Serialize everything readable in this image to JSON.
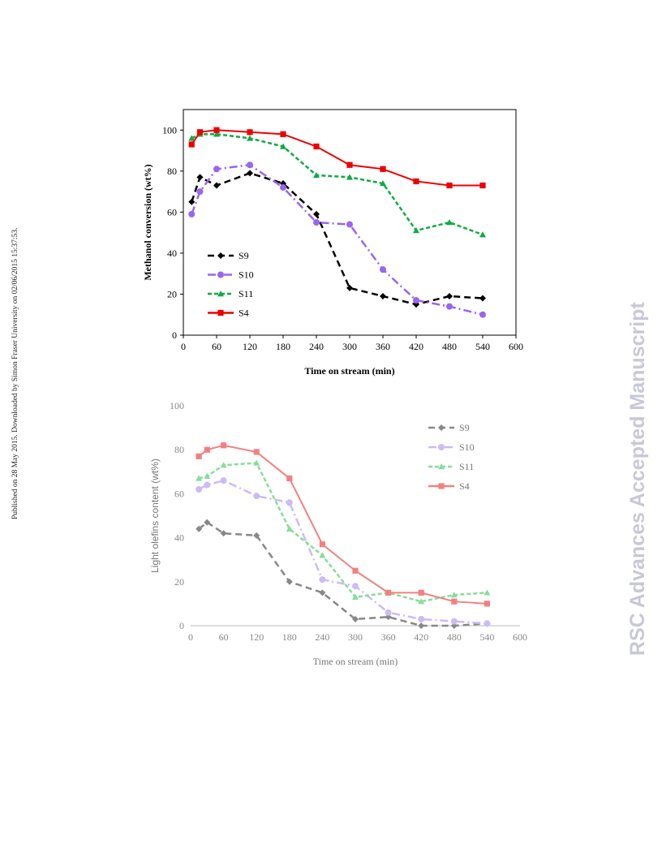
{
  "page": {
    "side_note": "Published on 28 May 2015. Downloaded by Simon Fraser University on 02/06/2015 15:37:53.",
    "watermark": "RSC Advances Accepted Manuscript"
  },
  "chart_data": [
    {
      "type": "line",
      "title": "",
      "xlabel": "Time on stream (min)",
      "ylabel": "Methanol conversion (wt%)",
      "xlim": [
        0,
        600
      ],
      "ylim": [
        0,
        110
      ],
      "xticks": [
        0,
        60,
        120,
        180,
        240,
        300,
        360,
        420,
        480,
        540,
        600
      ],
      "yticks": [
        0,
        20,
        40,
        60,
        80,
        100
      ],
      "grid": false,
      "legend_position": "lower-left",
      "x": [
        15,
        30,
        60,
        120,
        180,
        240,
        300,
        360,
        420,
        480,
        540
      ],
      "series": [
        {
          "name": "S9",
          "color": "#000000",
          "marker": "diamond",
          "dash": "dash",
          "values": [
            65,
            77,
            73,
            79,
            74,
            59,
            23,
            19,
            15,
            19,
            18
          ]
        },
        {
          "name": "S10",
          "color": "#9966ee",
          "marker": "circle",
          "dash": "dashdot",
          "values": [
            59,
            70,
            81,
            83,
            72,
            55,
            54,
            32,
            17,
            14,
            10
          ]
        },
        {
          "name": "S11",
          "color": "#11aa44",
          "marker": "triangle",
          "dash": "shortdash",
          "values": [
            96,
            98,
            98,
            96,
            92,
            78,
            77,
            74,
            51,
            55,
            49
          ]
        },
        {
          "name": "S4",
          "color": "#ee0000",
          "marker": "square",
          "dash": "solid",
          "values": [
            93,
            99,
            100,
            99,
            98,
            92,
            83,
            81,
            75,
            73,
            73
          ]
        }
      ]
    },
    {
      "type": "line",
      "title": "",
      "xlabel": "Time on stream (min)",
      "ylabel": "Light olefins content (wt%)",
      "xlim": [
        0,
        600
      ],
      "ylim": [
        0,
        100
      ],
      "xticks": [
        0,
        60,
        120,
        180,
        240,
        300,
        360,
        420,
        480,
        540,
        600
      ],
      "yticks": [
        0,
        20,
        40,
        60,
        80,
        100
      ],
      "grid": false,
      "legend_position": "top-right",
      "x": [
        15,
        30,
        60,
        120,
        180,
        240,
        300,
        360,
        420,
        480,
        540
      ],
      "series": [
        {
          "name": "S9",
          "color": "#888888",
          "marker": "diamond",
          "dash": "dash",
          "values": [
            44,
            47,
            42,
            41,
            20,
            15,
            3,
            4,
            0,
            0,
            1
          ]
        },
        {
          "name": "S10",
          "color": "#ccbbf5",
          "marker": "circle",
          "dash": "dashdot",
          "values": [
            62,
            64,
            66,
            59,
            56,
            21,
            18,
            6,
            3,
            2,
            1
          ]
        },
        {
          "name": "S11",
          "color": "#88dd99",
          "marker": "triangle",
          "dash": "shortdash",
          "values": [
            67,
            68,
            73,
            74,
            44,
            32,
            13,
            15,
            11,
            14,
            15
          ]
        },
        {
          "name": "S4",
          "color": "#f38080",
          "marker": "square",
          "dash": "solid",
          "values": [
            77,
            80,
            82,
            79,
            67,
            37,
            25,
            15,
            15,
            11,
            10
          ]
        }
      ]
    }
  ]
}
